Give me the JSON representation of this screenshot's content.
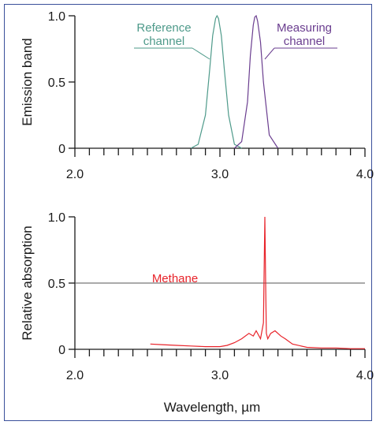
{
  "chart_data": [
    {
      "type": "line",
      "ylabel": "Emission band",
      "xlabel": "",
      "xlim": [
        2.0,
        4.0
      ],
      "ylim": [
        0,
        1.0
      ],
      "x_tick_labels": [
        "2.0",
        "3.0",
        "4.0"
      ],
      "y_tick_labels": [
        "0",
        "0.5",
        "1.0"
      ],
      "series": [
        {
          "name": "Reference channel",
          "color": "#4e9a8a",
          "x": [
            2.8,
            2.85,
            2.9,
            2.93,
            2.95,
            2.97,
            2.98,
            2.99,
            3.01,
            3.03,
            3.06,
            3.1,
            3.15
          ],
          "y": [
            0,
            0.03,
            0.25,
            0.6,
            0.85,
            0.98,
            1.0,
            0.98,
            0.85,
            0.6,
            0.25,
            0.03,
            0
          ]
        },
        {
          "name": "Measuring channel",
          "color": "#6a3d8f",
          "x": [
            3.1,
            3.15,
            3.19,
            3.21,
            3.23,
            3.24,
            3.25,
            3.26,
            3.28,
            3.3,
            3.34,
            3.4
          ],
          "y": [
            0,
            0.05,
            0.35,
            0.7,
            0.93,
            0.99,
            1.0,
            0.96,
            0.8,
            0.5,
            0.1,
            0
          ]
        }
      ],
      "annotations": [
        {
          "lines": [
            "Reference",
            "channel"
          ],
          "color": "#4e9a8a"
        },
        {
          "lines": [
            "Measuring",
            "channel"
          ],
          "color": "#6a3d8f"
        }
      ]
    },
    {
      "type": "line",
      "ylabel": "Relative absorption",
      "xlabel": "Wavelength, µm",
      "xlim": [
        2.0,
        4.0
      ],
      "ylim": [
        0,
        1.0
      ],
      "x_tick_labels": [
        "2.0",
        "3.0",
        "4.0"
      ],
      "y_tick_labels": [
        "0",
        "0.5",
        "1.0"
      ],
      "reference_line_y": 0.5,
      "series": [
        {
          "name": "Methane",
          "color": "#e8232a",
          "x": [
            2.52,
            2.6,
            2.7,
            2.8,
            2.9,
            3.0,
            3.05,
            3.1,
            3.15,
            3.2,
            3.23,
            3.25,
            3.28,
            3.3,
            3.31,
            3.315,
            3.32,
            3.33,
            3.35,
            3.38,
            3.42,
            3.45,
            3.5,
            3.6,
            3.7,
            3.8,
            3.9,
            4.0
          ],
          "y": [
            0.04,
            0.035,
            0.03,
            0.025,
            0.02,
            0.02,
            0.03,
            0.05,
            0.08,
            0.12,
            0.1,
            0.14,
            0.08,
            0.2,
            1.0,
            0.5,
            0.12,
            0.08,
            0.12,
            0.14,
            0.1,
            0.08,
            0.04,
            0.015,
            0.01,
            0.01,
            0.005,
            0.005
          ]
        }
      ],
      "annotations": [
        {
          "lines": [
            "Methane"
          ],
          "color": "#e8232a"
        }
      ]
    }
  ]
}
